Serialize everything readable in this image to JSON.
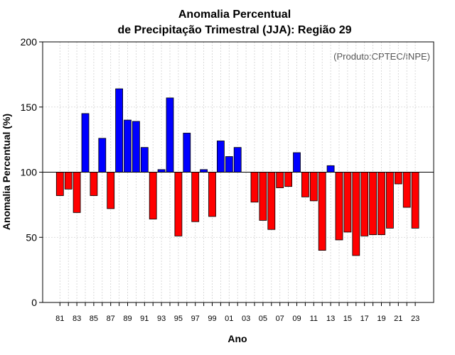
{
  "chart_data": {
    "type": "bar",
    "title_line1": "Anomalia Percentual",
    "title_line2": "de Precipitação Trimestral (JJA): Região 29",
    "xlabel": "Ano",
    "ylabel": "Anomalia Percentual (%)",
    "source_note": "(Produto:CPTEC/INPE)",
    "ylim": [
      0,
      200
    ],
    "yticks": [
      0,
      50,
      100,
      150,
      200
    ],
    "baseline": 100,
    "grid": true,
    "colors": {
      "above": "#0000ff",
      "below": "#ff0000",
      "edge": "#000000"
    },
    "categories": [
      "81",
      "82",
      "83",
      "84",
      "85",
      "86",
      "87",
      "88",
      "89",
      "90",
      "91",
      "92",
      "93",
      "94",
      "95",
      "96",
      "97",
      "98",
      "99",
      "00",
      "01",
      "02",
      "03",
      "04",
      "05",
      "06",
      "07",
      "08",
      "09",
      "10",
      "11",
      "12",
      "13",
      "14",
      "15",
      "16",
      "17",
      "18",
      "19",
      "20",
      "21",
      "22",
      "23"
    ],
    "xtick_labels": [
      "81",
      "83",
      "85",
      "87",
      "89",
      "91",
      "93",
      "95",
      "97",
      "99",
      "01",
      "03",
      "05",
      "07",
      "09",
      "11",
      "13",
      "15",
      "17",
      "19",
      "21",
      "23"
    ],
    "values": [
      82,
      87,
      69,
      145,
      82,
      126,
      72,
      164,
      140,
      139,
      119,
      64,
      102,
      157,
      51,
      130,
      62,
      102,
      66,
      124,
      112,
      119,
      100,
      77,
      63,
      56,
      88,
      89,
      115,
      81,
      78,
      40,
      105,
      48,
      54,
      36,
      51,
      52,
      52,
      57,
      91,
      73,
      57
    ]
  }
}
